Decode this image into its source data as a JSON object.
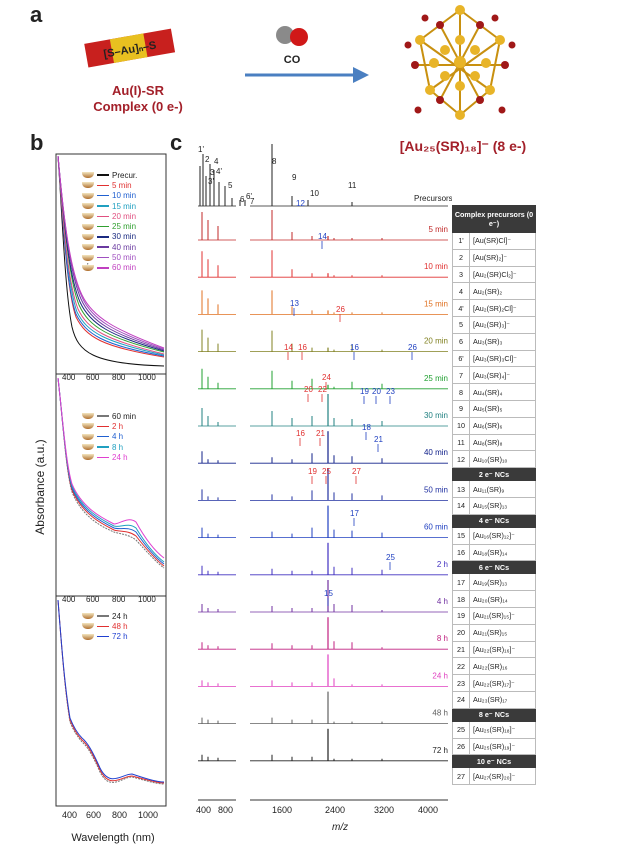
{
  "panel_labels": {
    "a": "a",
    "b": "b",
    "c": "c"
  },
  "panel_a": {
    "complex_formula": "[S–Au]ₙ–S",
    "complex_name_line1": "Au(I)-SR",
    "complex_name_line2": "Complex (0 e-)",
    "co_label": "CO",
    "product_label": "[Au₂₅(SR)₁₈]⁻ (8 e-)",
    "colors": {
      "title_red": "#a3202a",
      "arrow": "#4a7fc1",
      "gold": "#d9a520",
      "sulfur": "#a01818"
    }
  },
  "panel_b": {
    "ylabel": "Absorbance (a.u.)",
    "xlabel": "Wavelength (nm)",
    "xticks": [
      "400",
      "600",
      "800",
      "1000"
    ],
    "legends": [
      {
        "items": [
          {
            "label": "Precur.",
            "color": "#111111"
          },
          {
            "label": "5 min",
            "color": "#e03030"
          },
          {
            "label": "10 min",
            "color": "#2060d0"
          },
          {
            "label": "15 min",
            "color": "#20a0c0"
          },
          {
            "label": "20 min",
            "color": "#e05080"
          },
          {
            "label": "25 min",
            "color": "#30a030"
          },
          {
            "label": "30 min",
            "color": "#1a2a80"
          },
          {
            "label": "40 min",
            "color": "#6a3aa0"
          },
          {
            "label": "50 min",
            "color": "#a050c0"
          },
          {
            "label": "60 min",
            "color": "#c040c0"
          }
        ]
      },
      {
        "items": [
          {
            "label": "60 min",
            "color": "#777777"
          },
          {
            "label": "2 h",
            "color": "#e03030"
          },
          {
            "label": "4 h",
            "color": "#2060d0"
          },
          {
            "label": "8 h",
            "color": "#20a0c0"
          },
          {
            "label": "24 h",
            "color": "#e040d0"
          }
        ]
      },
      {
        "items": [
          {
            "label": "24 h",
            "color": "#777777"
          },
          {
            "label": "48 h",
            "color": "#e03030"
          },
          {
            "label": "72 h",
            "color": "#2040d0"
          }
        ]
      }
    ]
  },
  "panel_c": {
    "xlabel": "m/z",
    "xticks_left": [
      "400",
      "800"
    ],
    "xticks_right": [
      "1600",
      "2400",
      "3200",
      "4000"
    ],
    "top_label": "Precursors",
    "top_peak_labels": [
      "1'",
      "2",
      "3'",
      "3",
      "4",
      "4'",
      "5",
      "6",
      "6'",
      "7",
      "8",
      "9",
      "10",
      "11",
      "12"
    ],
    "trace_labels": [
      {
        "label": "5 min",
        "color": "#c02828"
      },
      {
        "label": "10 min",
        "color": "#e03030"
      },
      {
        "label": "15 min",
        "color": "#e07020"
      },
      {
        "label": "20 min",
        "color": "#808020"
      },
      {
        "label": "25 min",
        "color": "#20a030"
      },
      {
        "label": "30 min",
        "color": "#208080"
      },
      {
        "label": "40 min",
        "color": "#10208a"
      },
      {
        "label": "50 min",
        "color": "#2030a0"
      },
      {
        "label": "60 min",
        "color": "#2040c0"
      },
      {
        "label": "2 h",
        "color": "#4030c0"
      },
      {
        "label": "4 h",
        "color": "#7030a0"
      },
      {
        "label": "8 h",
        "color": "#c02080"
      },
      {
        "label": "24 h",
        "color": "#e040c0"
      },
      {
        "label": "48 h",
        "color": "#606060"
      },
      {
        "label": "72 h",
        "color": "#202020"
      }
    ],
    "annotations": [
      {
        "t": "14",
        "c": "#2040c0"
      },
      {
        "t": "13",
        "c": "#2040c0"
      },
      {
        "t": "26",
        "c": "#e03030"
      },
      {
        "t": "14",
        "c": "#e03030"
      },
      {
        "t": "16",
        "c": "#e03030"
      },
      {
        "t": "16",
        "c": "#2040c0"
      },
      {
        "t": "26",
        "c": "#2040c0"
      },
      {
        "t": "24",
        "c": "#e03030"
      },
      {
        "t": "20",
        "c": "#e03030"
      },
      {
        "t": "22",
        "c": "#e03030"
      },
      {
        "t": "19",
        "c": "#2040c0"
      },
      {
        "t": "20",
        "c": "#2040c0"
      },
      {
        "t": "23",
        "c": "#2040c0"
      },
      {
        "t": "16",
        "c": "#e03030"
      },
      {
        "t": "21",
        "c": "#e03030"
      },
      {
        "t": "18",
        "c": "#2040c0"
      },
      {
        "t": "21",
        "c": "#2040c0"
      },
      {
        "t": "19",
        "c": "#e03030"
      },
      {
        "t": "25",
        "c": "#e03030"
      },
      {
        "t": "27",
        "c": "#e03030"
      },
      {
        "t": "17",
        "c": "#2040c0"
      },
      {
        "t": "25",
        "c": "#2040c0"
      },
      {
        "t": "15",
        "c": "#2040c0"
      }
    ]
  },
  "table": {
    "rows": [
      {
        "type": "header",
        "text": "Complex precursors (0 e⁻)"
      },
      {
        "n": "1'",
        "f": "[Au(SR)Cl]⁻"
      },
      {
        "n": "2",
        "f": "[Au(SR)₂]⁻"
      },
      {
        "n": "3",
        "f": "[Au₂(SR)Cl₂]⁻"
      },
      {
        "n": "4",
        "f": "Au₂(SR)₂"
      },
      {
        "n": "4'",
        "f": "[Au₂(SR)₂Cl]⁻"
      },
      {
        "n": "5",
        "f": "[Au₂(SR)₃]⁻"
      },
      {
        "n": "6",
        "f": "Au₃(SR)₃"
      },
      {
        "n": "6'",
        "f": "[Au₃(SR)₃Cl]⁻"
      },
      {
        "n": "7",
        "f": "[Au₃(SR)₄]⁻"
      },
      {
        "n": "8",
        "f": "Au₄(SR)₄"
      },
      {
        "n": "9",
        "f": "Au₅(SR)₅"
      },
      {
        "n": "10",
        "f": "Au₆(SR)₆"
      },
      {
        "n": "11",
        "f": "Au₈(SR)₈"
      },
      {
        "n": "12",
        "f": "Au₁₀(SR)₁₀"
      },
      {
        "type": "header",
        "text": "2 e⁻ NCs"
      },
      {
        "n": "13",
        "f": "Au₁₁(SR)₉"
      },
      {
        "n": "14",
        "f": "Au₁₅(SR)₁₃"
      },
      {
        "type": "header",
        "text": "4 e⁻ NCs"
      },
      {
        "n": "15",
        "f": "[Au₁₆(SR)₁₂]⁻"
      },
      {
        "n": "16",
        "f": "Au₁₈(SR)₁₄"
      },
      {
        "type": "header",
        "text": "6 e⁻ NCs"
      },
      {
        "n": "17",
        "f": "Au₁₉(SR)₁₃"
      },
      {
        "n": "18",
        "f": "Au₂₀(SR)₁₄"
      },
      {
        "n": "19",
        "f": "[Au₂₁(SR)₁₅]⁻"
      },
      {
        "n": "20",
        "f": "Au₂₁(SR)₁₅"
      },
      {
        "n": "21",
        "f": "[Au₂₂(SR)₁₆]⁻"
      },
      {
        "n": "22",
        "f": "Au₂₂(SR)₁₆"
      },
      {
        "n": "23",
        "f": "[Au₂₂(SR)₁₇]⁻"
      },
      {
        "n": "24",
        "f": "Au₂₃(SR)₁₇"
      },
      {
        "type": "header",
        "text": "8 e⁻ NCs"
      },
      {
        "n": "25",
        "f": "[Au₂₅(SR)₁₈]⁻"
      },
      {
        "n": "26",
        "f": "[Au₂₅(SR)₁₉]⁻"
      },
      {
        "type": "header",
        "text": "10 e⁻ NCs"
      },
      {
        "n": "27",
        "f": "[Au₂₇(SR)₂₀]⁻"
      }
    ]
  }
}
